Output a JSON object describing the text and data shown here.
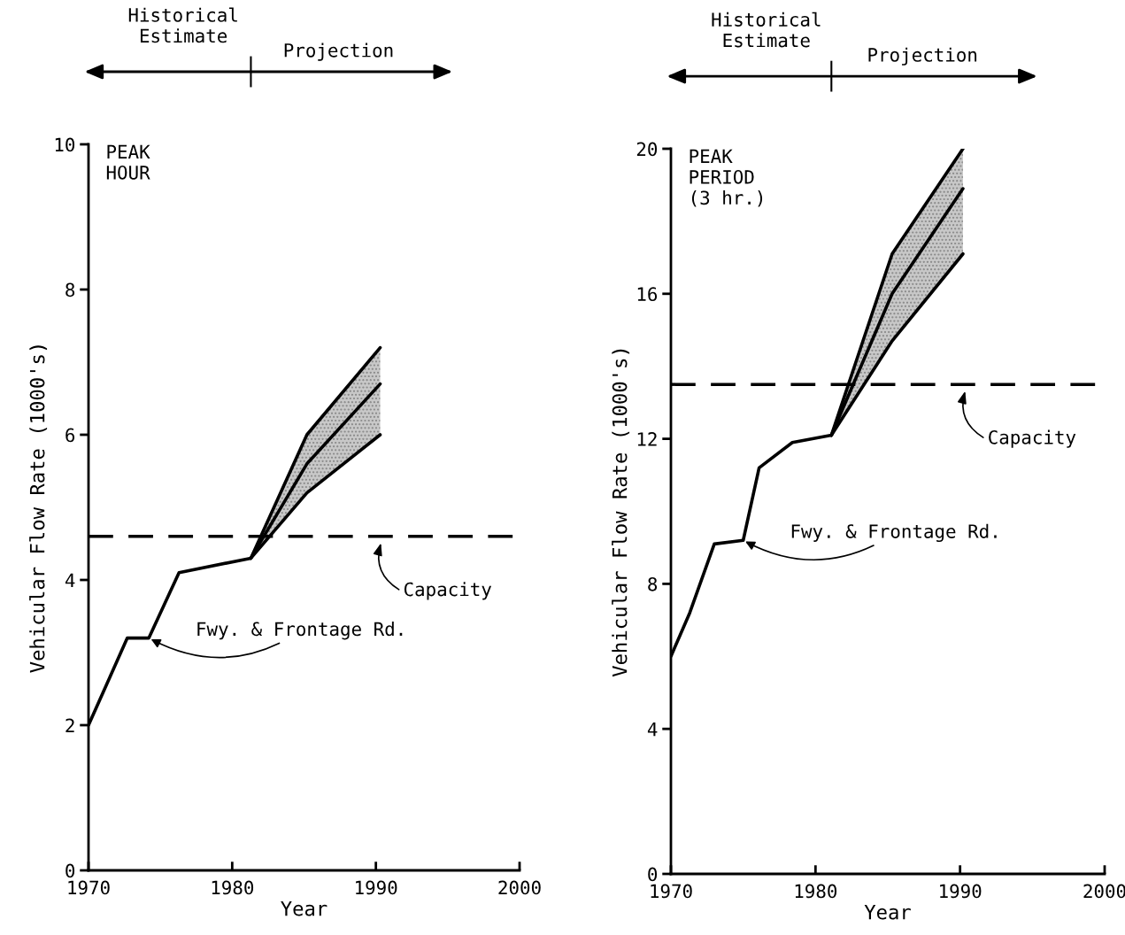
{
  "chart_data": [
    {
      "type": "line",
      "xlabel": "Year",
      "ylabel": "Vehicular Flow Rate (1000's)",
      "xlim": [
        1970,
        2000
      ],
      "xticks": [
        1970,
        1980,
        1990,
        2000
      ],
      "ylim": [
        0,
        10
      ],
      "yticks": [
        0,
        2,
        4,
        6,
        8,
        10
      ],
      "annotations": [
        "Historical\nEstimate",
        "Projection",
        "PEAK\nHOUR",
        {
          "text": "Fwy. & Frontage Rd.",
          "x": 1974.2,
          "y": 3.2
        }
      ],
      "ref_lines": [
        {
          "axis": "y",
          "value": 4.6,
          "label": "Capacity",
          "line_style": "dashed",
          "color": "#000000"
        }
      ],
      "series": [
        {
          "color": "#000000",
          "x": [
            1970,
            1972.7,
            1974.2,
            1976.3,
            1981.3
          ],
          "values": [
            2.0,
            3.2,
            3.2,
            4.1,
            4.3
          ]
        },
        {
          "color": "#000000",
          "x": [
            1981.3,
            1985.2,
            1990.3
          ],
          "values": [
            4.3,
            5.6,
            6.7
          ],
          "lower": [
            4.3,
            5.2,
            6.0
          ],
          "upper": [
            4.3,
            6.0,
            7.2
          ]
        },
        {
          "color": "#000000",
          "x": [
            1981.3,
            1985.2,
            1990.3
          ],
          "values": [
            4.3,
            6.0,
            7.2
          ]
        },
        {
          "color": "#000000",
          "x": [
            1981.3,
            1985.2,
            1990.3
          ],
          "values": [
            4.3,
            5.2,
            6.0
          ]
        }
      ]
    },
    {
      "type": "line",
      "xlabel": "Year",
      "ylabel": "Vehicular Flow Rate (1000's)",
      "xlim": [
        1970,
        2000
      ],
      "xticks": [
        1970,
        1980,
        1990,
        2000
      ],
      "ylim": [
        0,
        20
      ],
      "yticks": [
        0,
        4,
        8,
        12,
        16,
        20
      ],
      "annotations": [
        "Historical\nEstimate",
        "Projection",
        "PEAK\nPERIOD\n(3 hr.)",
        {
          "text": "Fwy. & Frontage Rd.",
          "x": 1975.0,
          "y": 9.2
        }
      ],
      "ref_lines": [
        {
          "axis": "y",
          "value": 13.5,
          "label": "Capacity",
          "line_style": "dashed",
          "color": "#000000"
        }
      ],
      "series": [
        {
          "color": "#000000",
          "x": [
            1970,
            1971.3,
            1973.0,
            1975.0,
            1976.1,
            1978.4,
            1981.1
          ],
          "values": [
            6.0,
            7.2,
            9.1,
            9.2,
            11.2,
            11.9,
            12.1
          ]
        },
        {
          "color": "#000000",
          "x": [
            1981.1,
            1985.3,
            1990.2
          ],
          "values": [
            12.1,
            16.0,
            18.9
          ],
          "lower": [
            12.1,
            14.7,
            17.1
          ],
          "upper": [
            12.1,
            17.1,
            20.0
          ]
        },
        {
          "color": "#000000",
          "x": [
            1981.1,
            1985.3,
            1990.2
          ],
          "values": [
            12.1,
            17.1,
            20.0
          ]
        },
        {
          "color": "#000000",
          "x": [
            1981.1,
            1985.3,
            1990.2
          ],
          "values": [
            12.1,
            14.7,
            17.1
          ]
        }
      ]
    }
  ]
}
